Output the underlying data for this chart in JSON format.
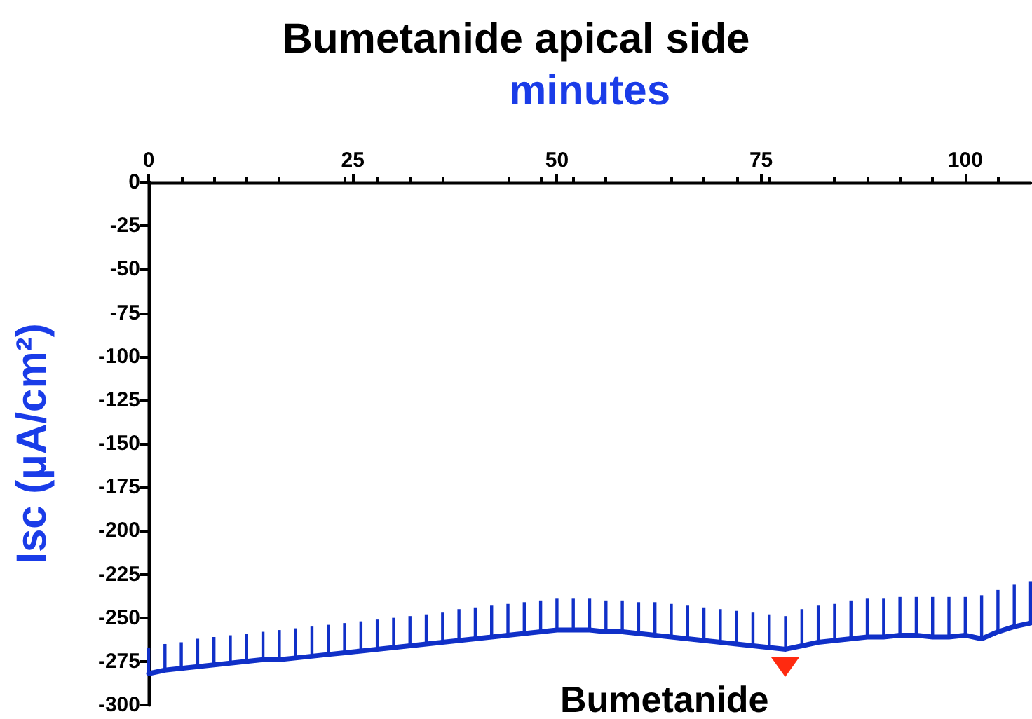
{
  "chart_data": {
    "type": "line",
    "title": "Bumetanide apical side",
    "xlabel": "minutes",
    "ylabel": "Isc (μA/cm²)",
    "x": [
      0,
      2,
      4,
      6,
      8,
      10,
      12,
      14,
      16,
      18,
      20,
      22,
      24,
      26,
      28,
      30,
      32,
      34,
      36,
      38,
      40,
      42,
      44,
      46,
      48,
      50,
      52,
      54,
      56,
      58,
      60,
      62,
      64,
      66,
      68,
      70,
      72,
      74,
      76,
      78,
      80,
      82,
      84,
      86,
      88,
      90,
      92,
      94,
      96,
      98,
      100,
      102,
      104,
      106,
      108
    ],
    "series": [
      {
        "color": "#1030c8",
        "values": [
          -282,
          -280,
          -279,
          -278,
          -277,
          -276,
          -275,
          -274,
          -274,
          -273,
          -272,
          -271,
          -270,
          -269,
          -268,
          -267,
          -266,
          -265,
          -264,
          -263,
          -262,
          -261,
          -260,
          -259,
          -258,
          -257,
          -257,
          -257,
          -258,
          -258,
          -259,
          -260,
          -261,
          -262,
          -263,
          -264,
          -265,
          -266,
          -267,
          -268,
          -266,
          -264,
          -263,
          -262,
          -261,
          -261,
          -260,
          -260,
          -261,
          -261,
          -260,
          -262,
          -258,
          -255,
          -253
        ],
        "errors": [
          [
            -282,
            -267
          ],
          [
            -280,
            -265
          ],
          [
            -279,
            -264
          ],
          [
            -278,
            -262
          ],
          [
            -277,
            -261
          ],
          [
            -276,
            -260
          ],
          [
            -275,
            -259
          ],
          [
            -274,
            -258
          ],
          [
            -274,
            -257
          ],
          [
            -273,
            -256
          ],
          [
            -272,
            -255
          ],
          [
            -271,
            -254
          ],
          [
            -270,
            -253
          ],
          [
            -269,
            -252
          ],
          [
            -268,
            -251
          ],
          [
            -267,
            -250
          ],
          [
            -266,
            -249
          ],
          [
            -265,
            -248
          ],
          [
            -264,
            -247
          ],
          [
            -263,
            -245
          ],
          [
            -262,
            -244
          ],
          [
            -261,
            -243
          ],
          [
            -260,
            -242
          ],
          [
            -259,
            -241
          ],
          [
            -258,
            -240
          ],
          [
            -257,
            -239
          ],
          [
            -257,
            -239
          ],
          [
            -257,
            -239
          ],
          [
            -258,
            -240
          ],
          [
            -258,
            -240
          ],
          [
            -259,
            -241
          ],
          [
            -260,
            -241
          ],
          [
            -261,
            -242
          ],
          [
            -262,
            -243
          ],
          [
            -263,
            -244
          ],
          [
            -264,
            -245
          ],
          [
            -265,
            -246
          ],
          [
            -266,
            -247
          ],
          [
            -267,
            -248
          ],
          [
            -268,
            -249
          ],
          [
            -266,
            -245
          ],
          [
            -264,
            -243
          ],
          [
            -263,
            -242
          ],
          [
            -262,
            -240
          ],
          [
            -261,
            -239
          ],
          [
            -261,
            -239
          ],
          [
            -260,
            -238
          ],
          [
            -260,
            -238
          ],
          [
            -261,
            -238
          ],
          [
            -261,
            -238
          ],
          [
            -260,
            -238
          ],
          [
            -262,
            -237
          ],
          [
            -258,
            -234
          ],
          [
            -255,
            -231
          ],
          [
            -253,
            -229
          ]
        ]
      }
    ],
    "xlim": [
      0,
      108
    ],
    "xticks": [
      0,
      25,
      50,
      75,
      100
    ],
    "ylim": [
      -300,
      0
    ],
    "yticks": [
      0,
      -25,
      -50,
      -75,
      -100,
      -125,
      -150,
      -175,
      -200,
      -225,
      -250,
      -275,
      -300
    ],
    "annotations": [
      {
        "text": "Bumetanide",
        "x": 78,
        "y": -268
      }
    ],
    "grid": false,
    "marker": "none",
    "line_style": "solid"
  }
}
